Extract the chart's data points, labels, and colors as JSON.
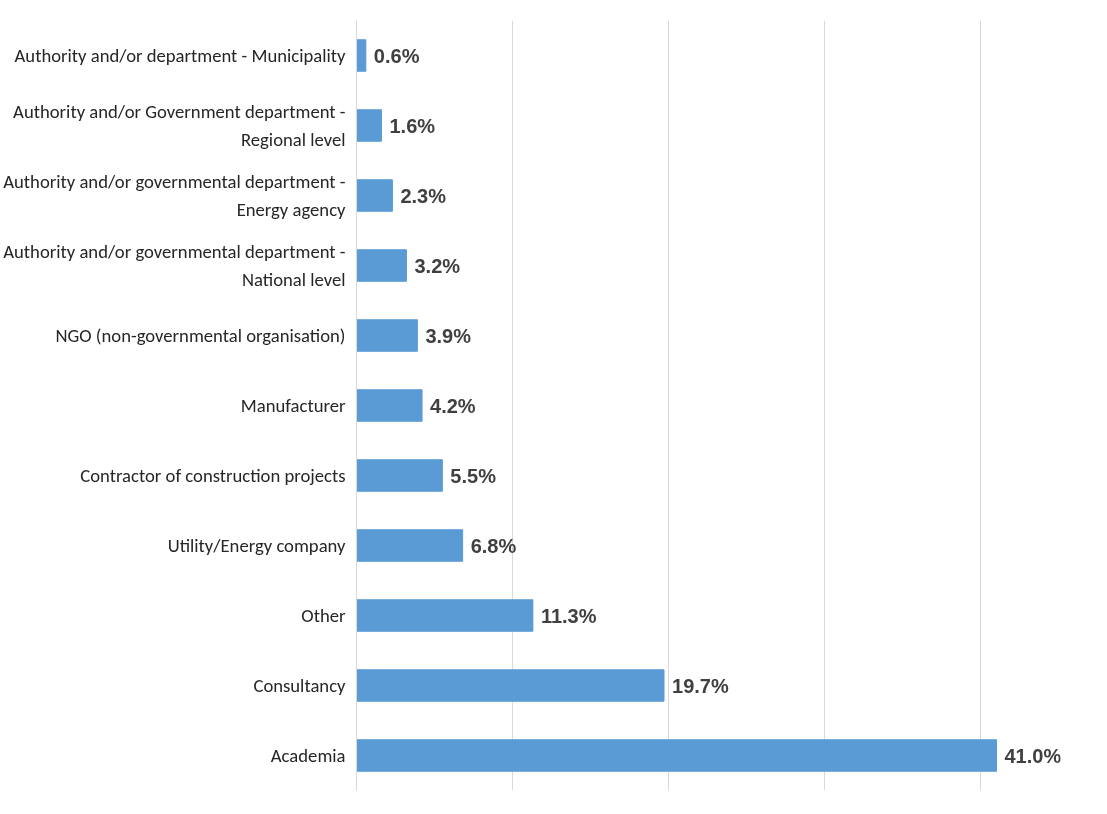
{
  "chart_data": {
    "type": "bar",
    "orientation": "horizontal",
    "categories": [
      "Authority and/or department - Municipality",
      "Authority and/or Government department - Regional level",
      "Authority and/or governmental department - Energy agency",
      "Authority and/or governmental department - National level",
      "NGO (non-governmental organisation)",
      "Manufacturer",
      "Contractor of construction projects",
      "Utility/Energy company",
      "Other",
      "Consultancy",
      "Academia"
    ],
    "values": [
      0.6,
      1.6,
      2.3,
      3.2,
      3.9,
      4.2,
      5.5,
      6.8,
      11.3,
      19.7,
      41.0
    ],
    "value_labels": [
      "0.6%",
      "1.6%",
      "2.3%",
      "3.2%",
      "3.9%",
      "4.2%",
      "5.5%",
      "6.8%",
      "11.3%",
      "19.7%",
      "41.0%"
    ],
    "color": "#5b9bd5",
    "grid": "x",
    "tick_labels": "y"
  }
}
